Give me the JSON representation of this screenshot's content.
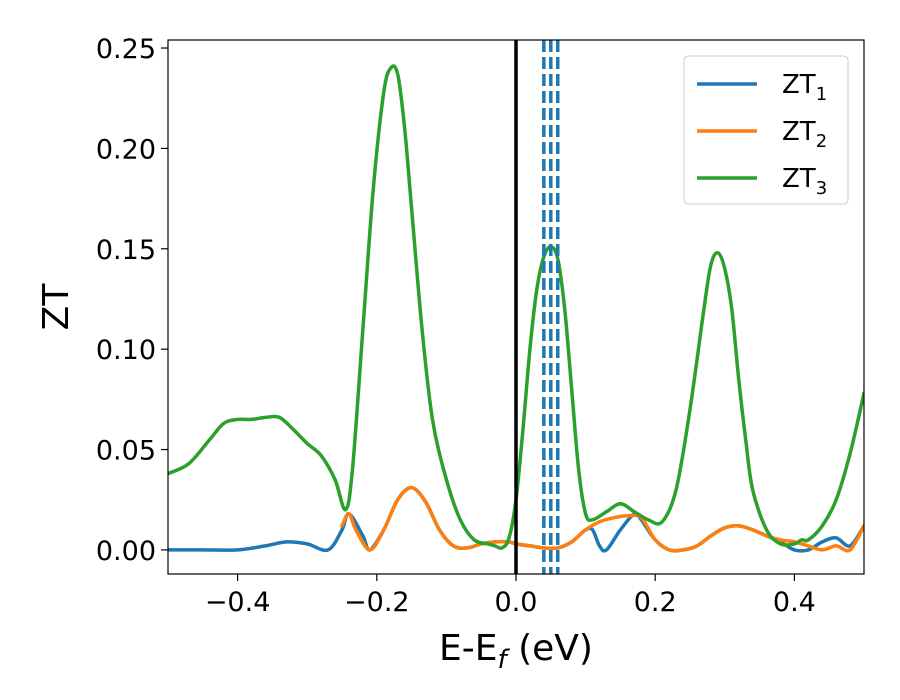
{
  "chart_data": {
    "type": "line",
    "xlabel": "E-E",
    "xlabel_sub": "f",
    "xlabel_unit": " (eV)",
    "ylabel": "ZT",
    "xlim": [
      -0.5,
      0.5
    ],
    "ylim": [
      -0.012,
      0.254
    ],
    "xticks": [
      -0.4,
      -0.2,
      0.0,
      0.2,
      0.4
    ],
    "xtick_labels": [
      "−0.4",
      "−0.2",
      "0.0",
      "0.2",
      "0.4"
    ],
    "yticks": [
      0.0,
      0.05,
      0.1,
      0.15,
      0.2,
      0.25
    ],
    "ytick_labels": [
      "0.00",
      "0.05",
      "0.10",
      "0.15",
      "0.20",
      "0.25"
    ],
    "grid": false,
    "legend_position": "top-right",
    "vertical_lines": [
      {
        "x": 0.0,
        "color": "#000000",
        "style": "solid"
      },
      {
        "x": 0.04,
        "color": "#1f77b4",
        "style": "dashed"
      },
      {
        "x": 0.05,
        "color": "#1f77b4",
        "style": "dashed"
      },
      {
        "x": 0.06,
        "color": "#1f77b4",
        "style": "dashed"
      }
    ],
    "series": [
      {
        "name": "ZT",
        "sub": "1",
        "color": "#1f77b4",
        "x": [
          -0.5,
          -0.45,
          -0.4,
          -0.36,
          -0.33,
          -0.3,
          -0.27,
          -0.25,
          -0.24,
          -0.22,
          -0.21,
          -0.19,
          -0.17,
          -0.15,
          -0.13,
          -0.11,
          -0.09,
          -0.07,
          -0.05,
          -0.03,
          -0.01,
          0.0,
          0.02,
          0.04,
          0.06,
          0.08,
          0.1,
          0.11,
          0.12,
          0.13,
          0.15,
          0.17,
          0.18,
          0.2,
          0.22,
          0.24,
          0.26,
          0.28,
          0.3,
          0.32,
          0.34,
          0.36,
          0.38,
          0.4,
          0.42,
          0.44,
          0.46,
          0.48,
          0.5
        ],
        "y": [
          0.0,
          0.0,
          0.0,
          0.002,
          0.004,
          0.003,
          0.0,
          0.01,
          0.018,
          0.007,
          0.0,
          0.01,
          0.025,
          0.031,
          0.024,
          0.01,
          0.002,
          0.001,
          0.003,
          0.004,
          0.004,
          0.003,
          0.002,
          0.001,
          0.001,
          0.004,
          0.01,
          0.01,
          0.002,
          0.0,
          0.01,
          0.018,
          0.015,
          0.005,
          0.0,
          0.0,
          0.002,
          0.007,
          0.011,
          0.012,
          0.01,
          0.007,
          0.004,
          0.0,
          0.0,
          0.004,
          0.006,
          0.002,
          0.012
        ]
      },
      {
        "name": "ZT",
        "sub": "2",
        "color": "#ff7f0e",
        "x": [
          -0.25,
          -0.24,
          -0.23,
          -0.21,
          -0.19,
          -0.17,
          -0.15,
          -0.13,
          -0.11,
          -0.09,
          -0.07,
          -0.05,
          -0.03,
          -0.01,
          0.0,
          0.02,
          0.04,
          0.06,
          0.08,
          0.1,
          0.12,
          0.14,
          0.16,
          0.18,
          0.2,
          0.22,
          0.24,
          0.26,
          0.28,
          0.3,
          0.32,
          0.34,
          0.36,
          0.38,
          0.4,
          0.42,
          0.44,
          0.46,
          0.48,
          0.5
        ],
        "y": [
          0.012,
          0.018,
          0.01,
          0.0,
          0.01,
          0.025,
          0.031,
          0.024,
          0.01,
          0.002,
          0.001,
          0.003,
          0.004,
          0.004,
          0.003,
          0.002,
          0.001,
          0.001,
          0.004,
          0.01,
          0.014,
          0.016,
          0.017,
          0.016,
          0.005,
          0.0,
          0.0,
          0.002,
          0.007,
          0.011,
          0.012,
          0.01,
          0.007,
          0.005,
          0.004,
          0.002,
          0.0,
          0.002,
          0.0,
          0.012
        ]
      },
      {
        "name": "ZT",
        "sub": "3",
        "color": "#2ca02c",
        "x": [
          -0.5,
          -0.47,
          -0.44,
          -0.42,
          -0.4,
          -0.38,
          -0.36,
          -0.34,
          -0.32,
          -0.3,
          -0.28,
          -0.26,
          -0.245,
          -0.235,
          -0.22,
          -0.205,
          -0.19,
          -0.18,
          -0.17,
          -0.16,
          -0.15,
          -0.135,
          -0.12,
          -0.1,
          -0.08,
          -0.06,
          -0.04,
          -0.03,
          -0.02,
          -0.01,
          0.0,
          0.01,
          0.02,
          0.03,
          0.04,
          0.05,
          0.06,
          0.07,
          0.08,
          0.09,
          0.1,
          0.11,
          0.13,
          0.15,
          0.17,
          0.19,
          0.21,
          0.23,
          0.25,
          0.27,
          0.28,
          0.29,
          0.3,
          0.31,
          0.32,
          0.33,
          0.34,
          0.36,
          0.38,
          0.4,
          0.41,
          0.42,
          0.44,
          0.46,
          0.48,
          0.5
        ],
        "y": [
          0.038,
          0.043,
          0.055,
          0.063,
          0.065,
          0.065,
          0.066,
          0.066,
          0.06,
          0.053,
          0.047,
          0.035,
          0.02,
          0.04,
          0.11,
          0.18,
          0.228,
          0.24,
          0.237,
          0.21,
          0.17,
          0.11,
          0.065,
          0.035,
          0.015,
          0.005,
          0.003,
          0.002,
          0.001,
          0.006,
          0.025,
          0.06,
          0.1,
          0.13,
          0.146,
          0.151,
          0.145,
          0.12,
          0.08,
          0.04,
          0.018,
          0.015,
          0.019,
          0.023,
          0.019,
          0.015,
          0.014,
          0.03,
          0.07,
          0.12,
          0.142,
          0.148,
          0.14,
          0.12,
          0.085,
          0.055,
          0.03,
          0.01,
          0.003,
          0.003,
          0.005,
          0.005,
          0.012,
          0.025,
          0.048,
          0.078
        ]
      }
    ]
  }
}
